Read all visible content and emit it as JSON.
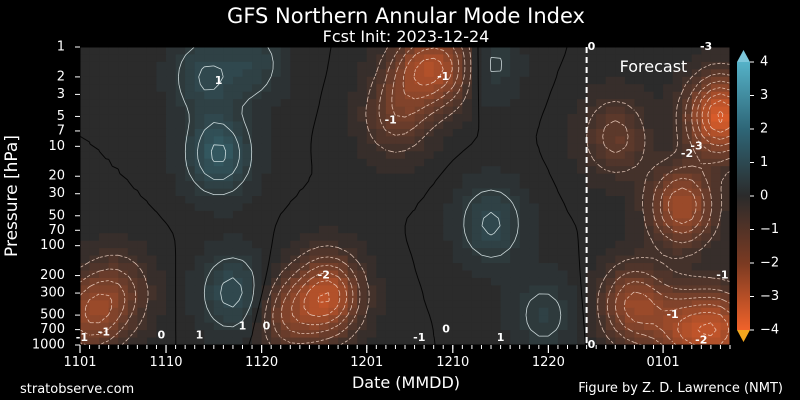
{
  "title": "GFS Northern Annular Mode Index",
  "subtitle": "Fcst Init: 2023-12-24",
  "footer_left": "stratobserve.com",
  "footer_right": "Figure by Z. D. Lawrence (NMT)",
  "forecast_label": "Forecast",
  "colors": {
    "background": "#000000",
    "positive": "#3f9fb6",
    "neutral": "#2b2b2b",
    "negative": "#f0622a",
    "forecast_line": "#ffffff",
    "contour_positive": "#e8f4f6",
    "contour_negative": "#f5d7c8",
    "contour_zero": "#000000"
  },
  "chart_data": {
    "type": "heatmap",
    "title": "GFS Northern Annular Mode Index",
    "subtitle": "Fcst Init: 2023-12-24",
    "xlabel": "Date (MMDD)",
    "ylabel": "Pressure [hPa]",
    "x_start": "1101",
    "x_end": "0108",
    "x_tick_labels": [
      "1101",
      "1110",
      "1120",
      "1201",
      "1210",
      "1220",
      "0101"
    ],
    "x_tick_days": [
      0,
      9,
      19,
      30,
      39,
      49,
      61
    ],
    "x_range_days": [
      0,
      68
    ],
    "forecast_init_day": 53,
    "y_scale": "log",
    "y_inverted": true,
    "ylim": [
      1000,
      1
    ],
    "y_tick_labels": [
      "1",
      "2",
      "3",
      "5",
      "7",
      "10",
      "20",
      "30",
      "50",
      "70",
      "100",
      "200",
      "300",
      "500",
      "700",
      "1000"
    ],
    "y_ticks": [
      1,
      2,
      3,
      5,
      7,
      10,
      20,
      30,
      50,
      70,
      100,
      200,
      300,
      500,
      700,
      1000
    ],
    "colorbar": {
      "range": [
        -4,
        4
      ],
      "ticks": [
        4,
        3,
        2,
        1,
        0,
        -1,
        -2,
        -3,
        -4
      ],
      "tick_labels": [
        "4",
        "3",
        "2",
        "1",
        "0",
        "−1",
        "−2",
        "−3",
        "−4"
      ],
      "extend": "both",
      "step": 0.25
    },
    "contour_interval": 0.5,
    "contour_labels": [
      {
        "text": "1",
        "day": 14.5,
        "p": 2.2
      },
      {
        "text": "-1",
        "day": 38,
        "p": 2
      },
      {
        "text": "-1",
        "day": 32.5,
        "p": 5.5
      },
      {
        "text": "-2",
        "day": 25.5,
        "p": 200
      },
      {
        "text": "1",
        "day": 17,
        "p": 650
      },
      {
        "text": "0",
        "day": 19.5,
        "p": 650
      },
      {
        "text": "0",
        "day": 8.5,
        "p": 800
      },
      {
        "text": "-1",
        "day": 2.5,
        "p": 750
      },
      {
        "text": "-1",
        "day": 0.2,
        "p": 850
      },
      {
        "text": "1",
        "day": 12.5,
        "p": 800
      },
      {
        "text": "-1",
        "day": 35.5,
        "p": 850
      },
      {
        "text": "0",
        "day": 38.3,
        "p": 700
      },
      {
        "text": "1",
        "day": 44,
        "p": 850
      },
      {
        "text": "0",
        "day": 53.5,
        "p": 1
      },
      {
        "text": "0",
        "day": 53.5,
        "p": 1000
      },
      {
        "text": "-3",
        "day": 65.5,
        "p": 1
      },
      {
        "text": "-2",
        "day": 63.5,
        "p": 12
      },
      {
        "text": "-3",
        "day": 64.5,
        "p": 10
      },
      {
        "text": "-1",
        "day": 67.2,
        "p": 200
      },
      {
        "text": "-1",
        "day": 62,
        "p": 500
      },
      {
        "text": "-2",
        "day": 65,
        "p": 900
      }
    ],
    "field_centers": [
      {
        "day": 14.5,
        "p": 12,
        "value": 1.6
      },
      {
        "day": 16,
        "p": 300,
        "value": 1.2
      },
      {
        "day": 13,
        "p": 2,
        "value": 1.0
      },
      {
        "day": 18,
        "p": 1.5,
        "value": 0.8
      },
      {
        "day": 35.5,
        "p": 1.8,
        "value": -2.0
      },
      {
        "day": 33,
        "p": 5,
        "value": -1.2
      },
      {
        "day": 26,
        "p": 320,
        "value": -2.8
      },
      {
        "day": 22,
        "p": 500,
        "value": -1.5
      },
      {
        "day": 1,
        "p": 500,
        "value": -1.8
      },
      {
        "day": 4,
        "p": 300,
        "value": -1.2
      },
      {
        "day": 43,
        "p": 60,
        "value": 1.1
      },
      {
        "day": 42,
        "p": 1.5,
        "value": 1.0
      },
      {
        "day": 48.5,
        "p": 500,
        "value": 0.7
      },
      {
        "day": 39,
        "p": 1.5,
        "value": -1.8
      },
      {
        "day": 67,
        "p": 5,
        "value": -3.6
      },
      {
        "day": 63,
        "p": 40,
        "value": -2.5
      },
      {
        "day": 58,
        "p": 400,
        "value": -2.2
      },
      {
        "day": 56,
        "p": 8,
        "value": -1.2
      },
      {
        "day": 63,
        "p": 700,
        "value": -2.0
      },
      {
        "day": 67,
        "p": 700,
        "value": -2.5
      }
    ]
  }
}
